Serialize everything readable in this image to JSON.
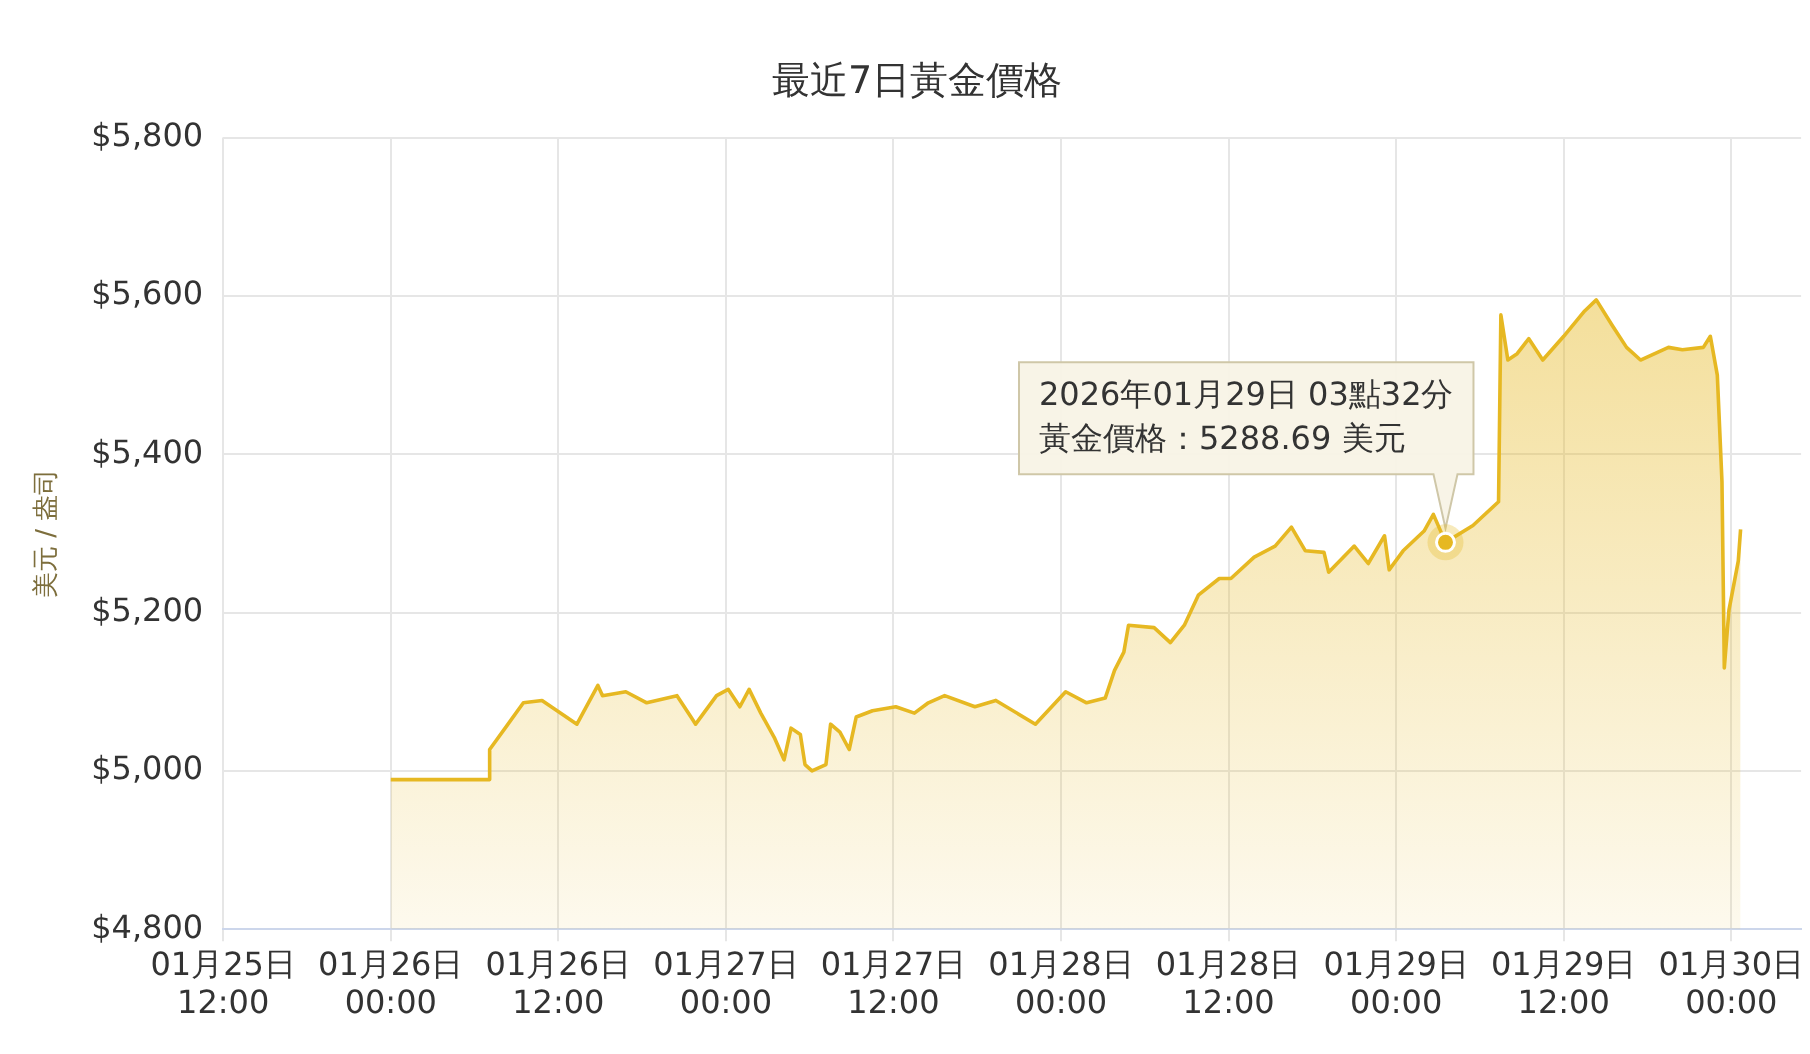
{
  "chart_data": {
    "type": "area",
    "title": "最近7日黃金價格",
    "ylabel": "美元 / 盎司",
    "x": [
      "2026-01-26T00:00",
      "2026-01-26T07:00",
      "2026-01-26T07:05",
      "2026-01-26T09:30",
      "2026-01-26T10:50",
      "2026-01-26T13:20",
      "2026-01-26T14:50",
      "2026-01-26T15:10",
      "2026-01-26T16:50",
      "2026-01-26T18:20",
      "2026-01-26T20:30",
      "2026-01-26T21:30",
      "2026-01-26T21:50",
      "2026-01-26T23:20",
      "2026-01-27T00:10",
      "2026-01-27T01:00",
      "2026-01-27T01:40",
      "2026-01-27T02:30",
      "2026-01-27T03:30",
      "2026-01-27T04:10",
      "2026-01-27T04:40",
      "2026-01-27T05:20",
      "2026-01-27T05:40",
      "2026-01-27T06:10",
      "2026-01-27T07:10",
      "2026-01-27T07:30",
      "2026-01-27T08:10",
      "2026-01-27T08:50",
      "2026-01-27T09:20",
      "2026-01-27T10:30",
      "2026-01-27T12:10",
      "2026-01-27T13:30",
      "2026-01-27T14:30",
      "2026-01-27T15:40",
      "2026-01-27T17:50",
      "2026-01-27T19:20",
      "2026-01-27T22:10",
      "2026-01-27T23:20",
      "2026-01-28T00:20",
      "2026-01-28T01:50",
      "2026-01-28T03:10",
      "2026-01-28T03:50",
      "2026-01-28T04:30",
      "2026-01-28T04:50",
      "2026-01-28T06:40",
      "2026-01-28T07:50",
      "2026-01-28T08:50",
      "2026-01-28T09:50",
      "2026-01-28T11:20",
      "2026-01-28T12:10",
      "2026-01-28T13:50",
      "2026-01-28T15:20",
      "2026-01-28T16:30",
      "2026-01-28T17:30",
      "2026-01-28T18:50",
      "2026-01-28T19:10",
      "2026-01-28T21:00",
      "2026-01-28T22:00",
      "2026-01-28T23:10",
      "2026-01-28T23:30",
      "2026-01-29T00:30",
      "2026-01-29T02:00",
      "2026-01-29T02:40",
      "2026-01-29T03:32",
      "2026-01-29T05:30",
      "2026-01-29T07:20",
      "2026-01-29T07:30",
      "2026-01-29T08:00",
      "2026-01-29T08:40",
      "2026-01-29T09:30",
      "2026-01-29T10:30",
      "2026-01-29T12:00",
      "2026-01-29T13:30",
      "2026-01-29T14:20",
      "2026-01-29T15:30",
      "2026-01-29T16:30",
      "2026-01-29T17:30",
      "2026-01-29T19:30",
      "2026-01-29T20:30",
      "2026-01-29T22:00",
      "2026-01-29T22:30",
      "2026-01-29T23:00",
      "2026-01-29T23:20",
      "2026-01-29T23:30",
      "2026-01-29T23:50",
      "2026-01-30T00:30",
      "2026-01-30T00:40"
    ],
    "series": [
      {
        "color": "#e6b822",
        "values": [
          4989,
          4989,
          5027,
          5086,
          5089,
          5059,
          5108,
          5095,
          5100,
          5086,
          5095,
          5068,
          5059,
          5095,
          5103,
          5081,
          5103,
          5073,
          5041,
          5014,
          5054,
          5046,
          5008,
          5000,
          5008,
          5059,
          5049,
          5027,
          5068,
          5076,
          5081,
          5073,
          5086,
          5095,
          5081,
          5089,
          5059,
          5081,
          5100,
          5086,
          5092,
          5127,
          5150,
          5184,
          5181,
          5162,
          5184,
          5222,
          5243,
          5243,
          5270,
          5284,
          5308,
          5278,
          5276,
          5251,
          5284,
          5262,
          5297,
          5254,
          5278,
          5303,
          5324,
          5288.69,
          5310,
          5340,
          5576,
          5519,
          5527,
          5546,
          5519,
          5549,
          5581,
          5595,
          5562,
          5535,
          5519,
          5535,
          5532,
          5535,
          5549,
          5500,
          5365,
          5130,
          5203,
          5265,
          5305
        ]
      }
    ],
    "xlim": [
      "2026-01-25T12:00",
      "2026-01-30T05:00"
    ],
    "xticks": [
      {
        "value": "2026-01-25T12:00",
        "label": "01月25日\n12:00"
      },
      {
        "value": "2026-01-26T00:00",
        "label": "01月26日\n00:00"
      },
      {
        "value": "2026-01-26T12:00",
        "label": "01月26日\n12:00"
      },
      {
        "value": "2026-01-27T00:00",
        "label": "01月27日\n00:00"
      },
      {
        "value": "2026-01-27T12:00",
        "label": "01月27日\n12:00"
      },
      {
        "value": "2026-01-28T00:00",
        "label": "01月28日\n00:00"
      },
      {
        "value": "2026-01-28T12:00",
        "label": "01月28日\n12:00"
      },
      {
        "value": "2026-01-29T00:00",
        "label": "01月29日\n00:00"
      },
      {
        "value": "2026-01-29T12:00",
        "label": "01月29日\n12:00"
      },
      {
        "value": "2026-01-30T00:00",
        "label": "01月30日\n00:00"
      }
    ],
    "ylim": [
      4800,
      5800
    ],
    "yticks": [
      {
        "value": 4800,
        "label": "$4,800"
      },
      {
        "value": 5000,
        "label": "$5,000"
      },
      {
        "value": 5200,
        "label": "$5,200"
      },
      {
        "value": 5400,
        "label": "$5,400"
      },
      {
        "value": 5600,
        "label": "$5,600"
      },
      {
        "value": 5800,
        "label": "$5,800"
      }
    ],
    "annotations": [
      "2026年01月29日 03點32分",
      {
        "text": "黃金價格：5288.69 美元",
        "x": "2026-01-29T03:32",
        "y": 5288.69
      }
    ],
    "grid": true,
    "legend": false,
    "marker": "none",
    "line_style": "solid"
  }
}
